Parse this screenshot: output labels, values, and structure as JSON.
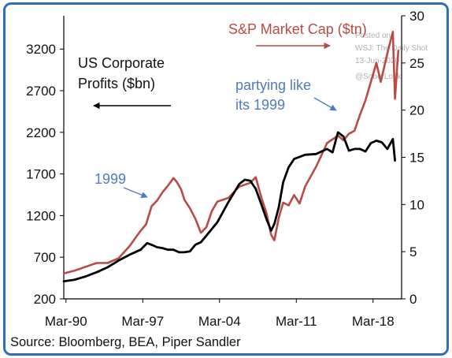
{
  "chart_data": {
    "type": "line",
    "title": "",
    "x_tick_labels": [
      "Mar-90",
      "Mar-97",
      "Mar-04",
      "Mar-11",
      "Mar-18"
    ],
    "x_range": [
      1990.0,
      2020.8
    ],
    "left_axis": {
      "ylim": [
        200,
        3600
      ],
      "ticks": [
        200,
        700,
        1200,
        1700,
        2200,
        2700,
        3200
      ]
    },
    "right_axis": {
      "ylim": [
        0,
        30
      ],
      "ticks": [
        0,
        5,
        10,
        15,
        20,
        25,
        30
      ]
    },
    "series": [
      {
        "name": "US Corporate Profits ($bn)",
        "axis": "left",
        "color": "#000000",
        "x": [
          1990.0,
          1991.0,
          1992.0,
          1993.0,
          1994.0,
          1995.0,
          1996.0,
          1997.0,
          1997.6,
          1998.0,
          1998.5,
          1999.0,
          1999.5,
          2000.0,
          2000.5,
          2001.0,
          2001.5,
          2002.0,
          2002.5,
          2003.0,
          2004.0,
          2005.0,
          2006.0,
          2006.5,
          2007.0,
          2007.5,
          2008.0,
          2008.5,
          2008.9,
          2009.2,
          2009.6,
          2010.0,
          2010.5,
          2011.0,
          2012.0,
          2013.0,
          2014.0,
          2014.5,
          2015.0,
          2015.5,
          2016.0,
          2016.5,
          2017.0,
          2017.5,
          2018.0,
          2018.5,
          2019.0,
          2019.5,
          2020.0,
          2020.2
        ],
        "values": [
          410,
          430,
          470,
          520,
          580,
          660,
          730,
          790,
          870,
          850,
          820,
          810,
          790,
          790,
          760,
          760,
          770,
          850,
          880,
          960,
          1120,
          1360,
          1580,
          1630,
          1620,
          1520,
          1340,
          1150,
          1020,
          1100,
          1300,
          1600,
          1780,
          1880,
          1930,
          1940,
          2000,
          1960,
          2200,
          2150,
          1980,
          2000,
          2000,
          1970,
          2070,
          2100,
          2080,
          2000,
          2120,
          1860
        ]
      },
      {
        "name": "S&P Market Cap ($tn)",
        "axis": "right",
        "color": "#b84b45",
        "x": [
          1990.0,
          1991.0,
          1992.0,
          1993.0,
          1994.0,
          1995.0,
          1996.0,
          1997.0,
          1997.5,
          1998.0,
          1998.5,
          1999.0,
          1999.5,
          2000.0,
          2000.3,
          2000.7,
          2001.0,
          2001.5,
          2002.0,
          2002.5,
          2003.0,
          2003.5,
          2004.0,
          2005.0,
          2006.0,
          2007.0,
          2007.5,
          2008.0,
          2008.5,
          2008.9,
          2009.2,
          2009.6,
          2010.0,
          2010.5,
          2011.0,
          2011.5,
          2012.0,
          2013.0,
          2014.0,
          2015.0,
          2015.5,
          2016.0,
          2016.5,
          2017.0,
          2017.5,
          2018.0,
          2018.5,
          2018.9,
          2019.2,
          2019.6,
          2020.0,
          2020.2,
          2020.5
        ],
        "values": [
          2.7,
          3.0,
          3.4,
          3.8,
          3.8,
          4.3,
          5.6,
          7.2,
          7.9,
          9.8,
          10.4,
          11.3,
          12.0,
          12.8,
          12.4,
          11.6,
          10.5,
          9.6,
          8.5,
          7.0,
          7.6,
          9.3,
          10.3,
          10.7,
          11.9,
          12.3,
          12.9,
          10.8,
          9.0,
          6.8,
          6.2,
          8.6,
          10.2,
          9.9,
          11.0,
          10.1,
          11.9,
          14.0,
          16.5,
          17.3,
          16.8,
          17.5,
          17.8,
          19.5,
          21.0,
          23.0,
          25.0,
          23.0,
          24.5,
          26.5,
          28.3,
          21.2,
          26.3
        ]
      }
    ],
    "annotations": [
      {
        "key": "left_label_line1",
        "text": "US Corporate"
      },
      {
        "key": "left_label_line2",
        "text": "Profits ($bn)"
      },
      {
        "key": "right_label",
        "text": "S&P Market Cap ($tn)"
      },
      {
        "key": "note_1999",
        "text": "1999"
      },
      {
        "key": "note_party_line1",
        "text": "partying like"
      },
      {
        "key": "note_party_line2",
        "text": "its 1999"
      }
    ],
    "watermark": [
      "Posted on",
      "WSJ: The Daily Shot",
      "13-Jun-2020",
      "@SoberLook"
    ],
    "source": "Source: Bloomberg, BEA, Piper Sandler",
    "grid": false
  }
}
